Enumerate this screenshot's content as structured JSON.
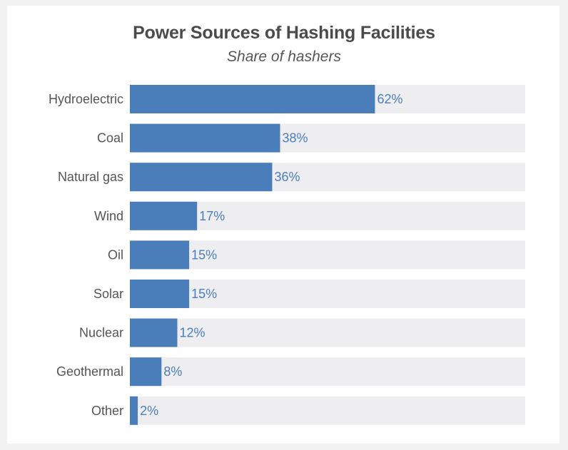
{
  "chart_data": {
    "type": "bar",
    "orientation": "horizontal",
    "title": "Power Sources of Hashing Facilities",
    "subtitle": "Share of hashers",
    "categories": [
      "Hydroelectric",
      "Coal",
      "Natural gas",
      "Wind",
      "Oil",
      "Solar",
      "Nuclear",
      "Geothermal",
      "Other"
    ],
    "values": [
      62,
      38,
      36,
      17,
      15,
      15,
      12,
      8,
      2
    ],
    "value_labels": [
      "62%",
      "38%",
      "36%",
      "17%",
      "15%",
      "15%",
      "12%",
      "8%",
      "2%"
    ],
    "xlim": [
      0,
      100
    ],
    "xlabel": "",
    "ylabel": "",
    "bar_color": "#4a7ebb",
    "track_color": "#eeeef0",
    "label_color": "#4a7ebb"
  }
}
